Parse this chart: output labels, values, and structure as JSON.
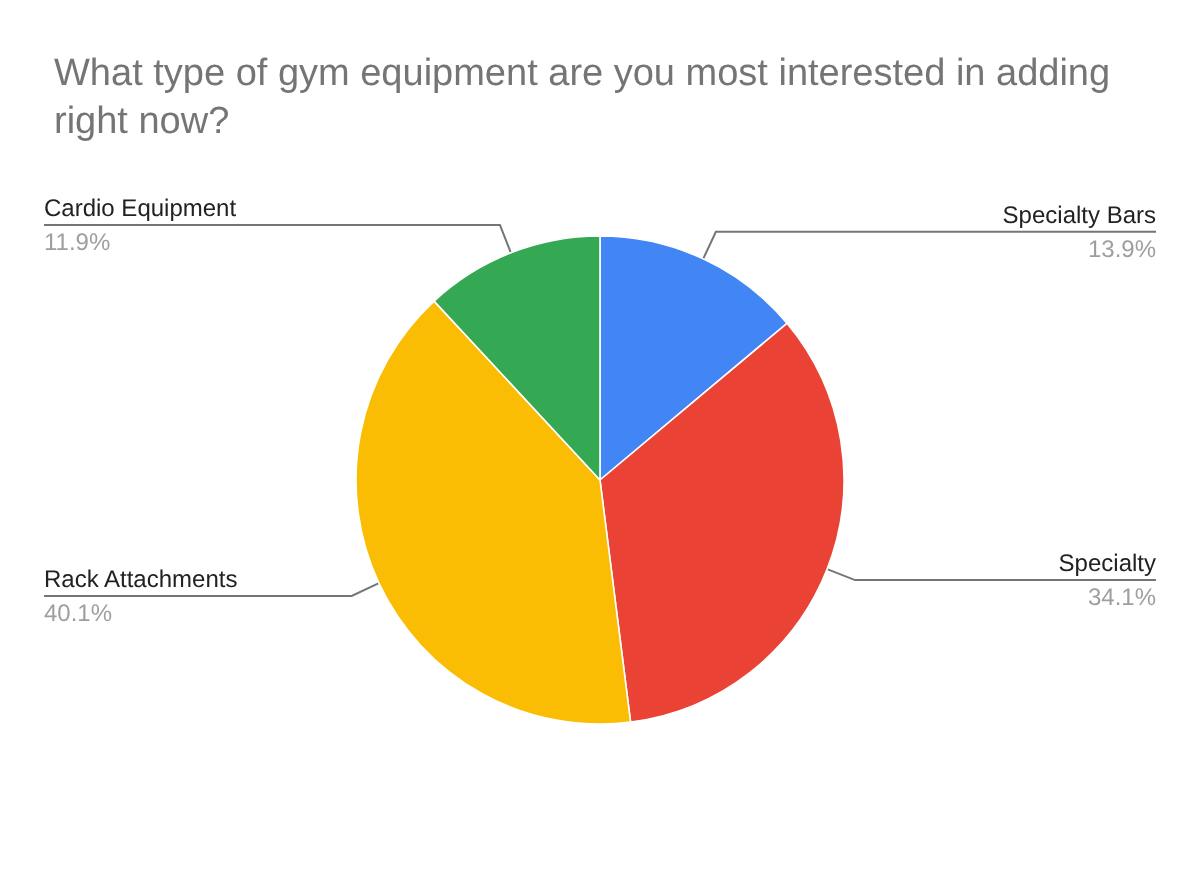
{
  "chart_data": {
    "type": "pie",
    "title": "What type of gym equipment are you most interested in adding right now?",
    "categories": [
      "Specialty Bars",
      "Specialty",
      "Rack Attachments",
      "Cardio Equipment"
    ],
    "values": [
      13.9,
      34.1,
      40.1,
      11.9
    ],
    "value_labels": [
      "13.9%",
      "34.1%",
      "40.1%",
      "11.9%"
    ],
    "colors": [
      "#4285f4",
      "#ea4335",
      "#fbbc04",
      "#34a853"
    ]
  }
}
